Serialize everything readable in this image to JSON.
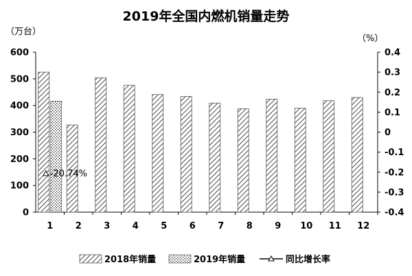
{
  "chart_data": {
    "type": "bar",
    "title": "2019年全国内燃机销量走势",
    "y_left_unit": "（万台）",
    "y_right_unit": "（%）",
    "categories": [
      "1",
      "2",
      "3",
      "4",
      "5",
      "6",
      "7",
      "8",
      "9",
      "10",
      "11",
      "12"
    ],
    "series": [
      {
        "name": "2018年销量",
        "type": "bar",
        "axis": "left",
        "values": [
          525,
          327,
          504,
          476,
          441,
          434,
          409,
          388,
          424,
          390,
          418,
          430
        ]
      },
      {
        "name": "2019年销量",
        "type": "bar",
        "axis": "left",
        "values": [
          416,
          null,
          null,
          null,
          null,
          null,
          null,
          null,
          null,
          null,
          null,
          null
        ]
      },
      {
        "name": "同比增长率",
        "type": "line",
        "axis": "right",
        "values": [
          -0.2074,
          null,
          null,
          null,
          null,
          null,
          null,
          null,
          null,
          null,
          null,
          null
        ]
      }
    ],
    "data_labels": [
      {
        "series": "同比增长率",
        "category": "1",
        "text": "-20.74%"
      }
    ],
    "y_left": {
      "range": [
        0,
        600
      ],
      "ticks": [
        "0",
        "100",
        "200",
        "300",
        "400",
        "500",
        "600"
      ]
    },
    "y_right": {
      "range": [
        -0.4,
        0.4
      ],
      "ticks": [
        "-0.4",
        "-0.3",
        "-0.2",
        "-0.1",
        "0",
        "0.1",
        "0.2",
        "0.3",
        "0.4"
      ]
    },
    "grid": false,
    "legend_position": "bottom"
  }
}
